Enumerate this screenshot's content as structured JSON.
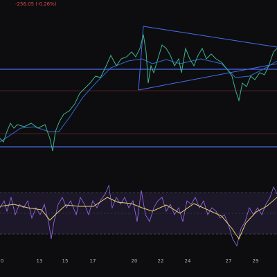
{
  "header": {
    "change": "-256.05 (-0.26%)"
  },
  "x_axis": {
    "labels": [
      "0",
      "13",
      "15",
      "17",
      "20",
      "22",
      "24",
      "27",
      "29"
    ]
  }
}
